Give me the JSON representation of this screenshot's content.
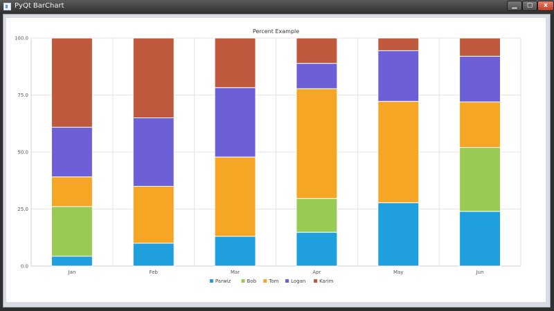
{
  "window": {
    "title": "PyQt BarChart",
    "close_glyph": "x"
  },
  "chart_data": {
    "type": "bar",
    "stacked": "percent",
    "title": "Percent Example",
    "categories": [
      "Jan",
      "Feb",
      "Mar",
      "Apr",
      "May",
      "Jun"
    ],
    "ylim": [
      0,
      100
    ],
    "yticks": [
      "0.0",
      "25.0",
      "50.0",
      "75.0",
      "100.0"
    ],
    "grid": true,
    "legend": "bottom",
    "series": [
      {
        "name": "Parwiz",
        "color": "#209fdf",
        "values": [
          1,
          2,
          3,
          4,
          5,
          6
        ]
      },
      {
        "name": "Bob",
        "color": "#99ca53",
        "values": [
          5,
          0,
          0,
          4,
          0,
          7
        ]
      },
      {
        "name": "Tom",
        "color": "#f6a625",
        "values": [
          3,
          5,
          8,
          13,
          8,
          5
        ]
      },
      {
        "name": "Logan",
        "color": "#6d5fd5",
        "values": [
          5,
          6,
          7,
          3,
          4,
          5
        ]
      },
      {
        "name": "Karim",
        "color": "#bf593e",
        "values": [
          9,
          7,
          5,
          3,
          1,
          2
        ]
      }
    ]
  }
}
